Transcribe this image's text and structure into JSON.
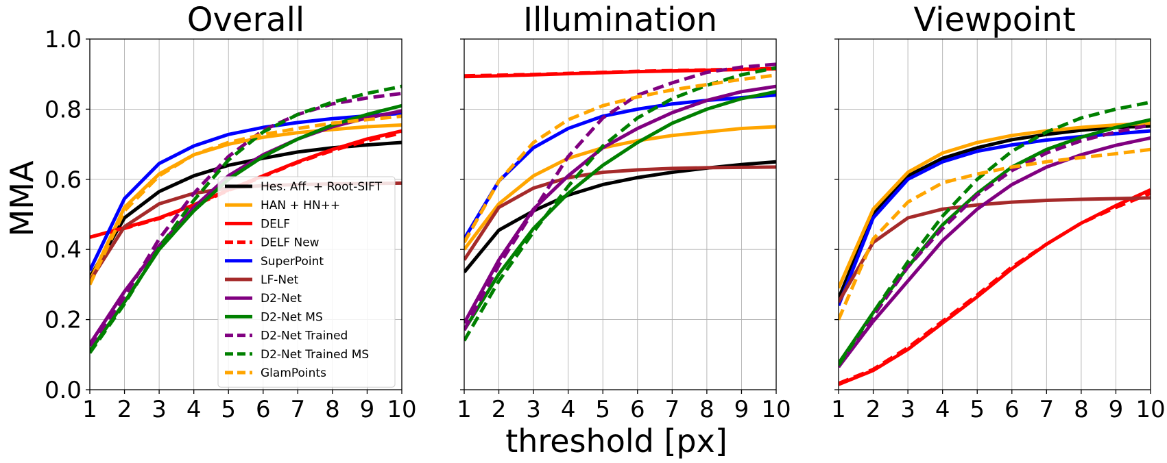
{
  "figure": {
    "ylabel": "MMA",
    "xlabel": "threshold [px]"
  },
  "chart_data": [
    {
      "type": "line",
      "title": "Overall",
      "ylabel": "MMA",
      "x": [
        1,
        2,
        3,
        4,
        5,
        6,
        7,
        8,
        9,
        10
      ],
      "xlim": [
        1,
        10
      ],
      "ylim": [
        0,
        1
      ],
      "xticks": [
        "1",
        "2",
        "3",
        "4",
        "5",
        "6",
        "7",
        "8",
        "9",
        "10"
      ],
      "yticks": [
        "0.0",
        "0.2",
        "0.4",
        "0.6",
        "0.8",
        "1.0"
      ],
      "grid": true,
      "legend": "lower-right",
      "series": [
        {
          "name": "Hes. Aff. + Root-SIFT",
          "color": "#000000",
          "style": "solid",
          "values": [
            0.32,
            0.49,
            0.565,
            0.61,
            0.64,
            0.66,
            0.678,
            0.69,
            0.698,
            0.705
          ]
        },
        {
          "name": "HAN + HN++",
          "color": "#ffa500",
          "style": "solid",
          "values": [
            0.31,
            0.52,
            0.615,
            0.67,
            0.7,
            0.72,
            0.733,
            0.742,
            0.75,
            0.755
          ]
        },
        {
          "name": "DELF",
          "color": "#ff0000",
          "style": "solid",
          "values": [
            0.435,
            0.462,
            0.49,
            0.527,
            0.57,
            0.61,
            0.65,
            0.685,
            0.715,
            0.738
          ]
        },
        {
          "name": "DELF New",
          "color": "#ff0000",
          "style": "dashed",
          "values": [
            0.435,
            0.46,
            0.488,
            0.525,
            0.568,
            0.608,
            0.648,
            0.682,
            0.71,
            0.732
          ]
        },
        {
          "name": "SuperPoint",
          "color": "#0000ff",
          "style": "solid",
          "values": [
            0.34,
            0.545,
            0.645,
            0.695,
            0.728,
            0.748,
            0.762,
            0.773,
            0.781,
            0.788
          ]
        },
        {
          "name": "LF-Net",
          "color": "#a52a2a",
          "style": "solid",
          "values": [
            0.31,
            0.465,
            0.53,
            0.56,
            0.575,
            0.582,
            0.585,
            0.587,
            0.588,
            0.589
          ]
        },
        {
          "name": "D2-Net",
          "color": "#800080",
          "style": "solid",
          "values": [
            0.13,
            0.28,
            0.41,
            0.52,
            0.61,
            0.67,
            0.715,
            0.75,
            0.775,
            0.795
          ]
        },
        {
          "name": "D2-Net MS",
          "color": "#008000",
          "style": "solid",
          "values": [
            0.11,
            0.25,
            0.4,
            0.51,
            0.6,
            0.665,
            0.715,
            0.755,
            0.785,
            0.81
          ]
        },
        {
          "name": "D2-Net Trained",
          "color": "#800080",
          "style": "dashed",
          "values": [
            0.125,
            0.265,
            0.43,
            0.56,
            0.665,
            0.74,
            0.785,
            0.815,
            0.832,
            0.845
          ]
        },
        {
          "name": "D2-Net Trained MS",
          "color": "#008000",
          "style": "dashed",
          "values": [
            0.105,
            0.245,
            0.405,
            0.54,
            0.655,
            0.735,
            0.785,
            0.82,
            0.845,
            0.865
          ]
        },
        {
          "name": "GlamPoints",
          "color": "#ffa500",
          "style": "dashed",
          "values": [
            0.3,
            0.51,
            0.61,
            0.67,
            0.705,
            0.728,
            0.745,
            0.76,
            0.77,
            0.78
          ]
        }
      ]
    },
    {
      "type": "line",
      "title": "Illumination",
      "x": [
        1,
        2,
        3,
        4,
        5,
        6,
        7,
        8,
        9,
        10
      ],
      "xlim": [
        1,
        10
      ],
      "ylim": [
        0,
        1
      ],
      "xticks": [
        "1",
        "2",
        "3",
        "4",
        "5",
        "6",
        "7",
        "8",
        "9",
        "10"
      ],
      "grid": true,
      "series": [
        {
          "name": "Hes. Aff. + Root-SIFT",
          "color": "#000000",
          "style": "solid",
          "values": [
            0.335,
            0.455,
            0.51,
            0.555,
            0.585,
            0.605,
            0.62,
            0.632,
            0.642,
            0.65
          ]
        },
        {
          "name": "HAN + HN++",
          "color": "#ffa500",
          "style": "solid",
          "values": [
            0.4,
            0.53,
            0.61,
            0.66,
            0.69,
            0.71,
            0.725,
            0.735,
            0.745,
            0.75
          ]
        },
        {
          "name": "DELF",
          "color": "#ff0000",
          "style": "solid",
          "values": [
            0.893,
            0.895,
            0.898,
            0.901,
            0.904,
            0.907,
            0.909,
            0.911,
            0.913,
            0.915
          ]
        },
        {
          "name": "DELF New",
          "color": "#ff0000",
          "style": "dashed",
          "values": [
            0.895,
            0.897,
            0.899,
            0.902,
            0.905,
            0.908,
            0.91,
            0.912,
            0.914,
            0.916
          ]
        },
        {
          "name": "SuperPoint",
          "color": "#0000ff",
          "style": "solid",
          "values": [
            0.43,
            0.595,
            0.69,
            0.745,
            0.78,
            0.8,
            0.815,
            0.825,
            0.833,
            0.84
          ]
        },
        {
          "name": "LF-Net",
          "color": "#a52a2a",
          "style": "solid",
          "values": [
            0.37,
            0.52,
            0.575,
            0.605,
            0.62,
            0.627,
            0.631,
            0.633,
            0.634,
            0.635
          ]
        },
        {
          "name": "D2-Net",
          "color": "#800080",
          "style": "solid",
          "values": [
            0.19,
            0.37,
            0.515,
            0.61,
            0.69,
            0.745,
            0.79,
            0.825,
            0.85,
            0.865
          ]
        },
        {
          "name": "D2-Net MS",
          "color": "#008000",
          "style": "solid",
          "values": [
            0.17,
            0.33,
            0.46,
            0.56,
            0.64,
            0.705,
            0.76,
            0.8,
            0.83,
            0.85
          ]
        },
        {
          "name": "D2-Net Trained",
          "color": "#800080",
          "style": "dashed",
          "values": [
            0.17,
            0.355,
            0.51,
            0.665,
            0.775,
            0.84,
            0.875,
            0.905,
            0.92,
            0.928
          ]
        },
        {
          "name": "D2-Net Trained MS",
          "color": "#008000",
          "style": "dashed",
          "values": [
            0.14,
            0.31,
            0.45,
            0.58,
            0.695,
            0.775,
            0.83,
            0.868,
            0.898,
            0.918
          ]
        },
        {
          "name": "GlamPoints",
          "color": "#ffa500",
          "style": "dashed",
          "values": [
            0.42,
            0.595,
            0.705,
            0.77,
            0.81,
            0.835,
            0.855,
            0.87,
            0.885,
            0.897
          ]
        }
      ]
    },
    {
      "type": "line",
      "title": "Viewpoint",
      "x": [
        1,
        2,
        3,
        4,
        5,
        6,
        7,
        8,
        9,
        10
      ],
      "xlim": [
        1,
        10
      ],
      "ylim": [
        0,
        1
      ],
      "xticks": [
        "1",
        "2",
        "3",
        "4",
        "5",
        "6",
        "7",
        "8",
        "9",
        "10"
      ],
      "grid": true,
      "series": [
        {
          "name": "Hes. Aff. + Root-SIFT",
          "color": "#000000",
          "style": "solid",
          "values": [
            0.26,
            0.5,
            0.61,
            0.66,
            0.69,
            0.713,
            0.728,
            0.74,
            0.748,
            0.752
          ]
        },
        {
          "name": "HAN + HN++",
          "color": "#ffa500",
          "style": "solid",
          "values": [
            0.29,
            0.515,
            0.62,
            0.675,
            0.705,
            0.725,
            0.738,
            0.748,
            0.755,
            0.76
          ]
        },
        {
          "name": "DELF",
          "color": "#ff0000",
          "style": "solid",
          "values": [
            0.015,
            0.055,
            0.115,
            0.19,
            0.265,
            0.345,
            0.415,
            0.475,
            0.525,
            0.57
          ]
        },
        {
          "name": "DELF New",
          "color": "#ff0000",
          "style": "dashed",
          "values": [
            0.018,
            0.058,
            0.12,
            0.195,
            0.27,
            0.35,
            0.415,
            0.475,
            0.52,
            0.56
          ]
        },
        {
          "name": "SuperPoint",
          "color": "#0000ff",
          "style": "solid",
          "values": [
            0.24,
            0.49,
            0.6,
            0.65,
            0.68,
            0.698,
            0.712,
            0.722,
            0.73,
            0.738
          ]
        },
        {
          "name": "LF-Net",
          "color": "#a52a2a",
          "style": "solid",
          "values": [
            0.25,
            0.42,
            0.49,
            0.515,
            0.527,
            0.535,
            0.54,
            0.543,
            0.545,
            0.547
          ]
        },
        {
          "name": "D2-Net",
          "color": "#800080",
          "style": "solid",
          "values": [
            0.065,
            0.195,
            0.31,
            0.425,
            0.515,
            0.585,
            0.635,
            0.67,
            0.697,
            0.718
          ]
        },
        {
          "name": "D2-Net MS",
          "color": "#008000",
          "style": "solid",
          "values": [
            0.075,
            0.22,
            0.35,
            0.47,
            0.56,
            0.635,
            0.685,
            0.72,
            0.748,
            0.77
          ]
        },
        {
          "name": "D2-Net Trained",
          "color": "#800080",
          "style": "dashed",
          "values": [
            0.065,
            0.21,
            0.35,
            0.46,
            0.555,
            0.625,
            0.675,
            0.71,
            0.735,
            0.755
          ]
        },
        {
          "name": "D2-Net Trained MS",
          "color": "#008000",
          "style": "dashed",
          "values": [
            0.07,
            0.22,
            0.365,
            0.495,
            0.6,
            0.68,
            0.735,
            0.775,
            0.8,
            0.82
          ]
        },
        {
          "name": "GlamPoints",
          "color": "#ffa500",
          "style": "dashed",
          "values": [
            0.2,
            0.43,
            0.535,
            0.59,
            0.615,
            0.635,
            0.65,
            0.662,
            0.673,
            0.685
          ]
        }
      ]
    }
  ]
}
